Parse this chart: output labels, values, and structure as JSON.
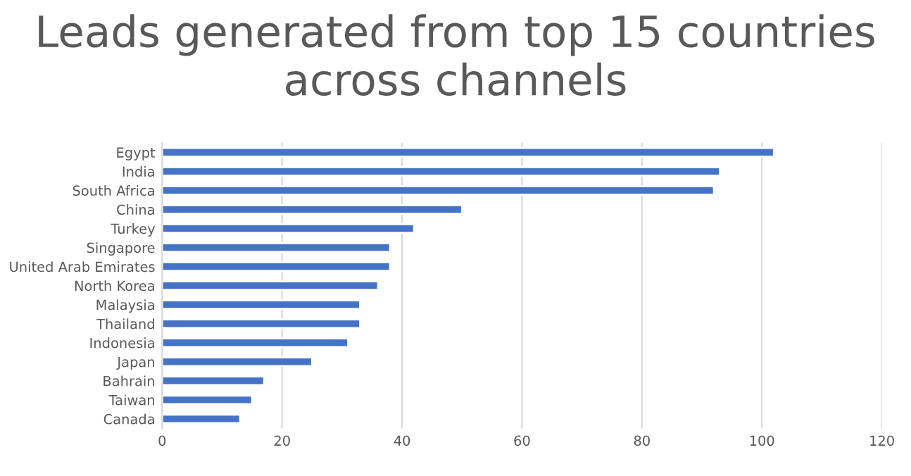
{
  "chart_data": {
    "type": "bar",
    "orientation": "horizontal",
    "title": "Leads generated from top 15 countries across channels",
    "categories": [
      "Egypt",
      "India",
      "South Africa",
      "China",
      "Turkey",
      "Singapore",
      "United Arab Emirates",
      "North Korea",
      "Malaysia",
      "Thailand",
      "Indonesia",
      "Japan",
      "Bahrain",
      "Taiwan",
      "Canada"
    ],
    "values": [
      102,
      93,
      92,
      50,
      42,
      38,
      38,
      36,
      33,
      33,
      31,
      25,
      17,
      15,
      13
    ],
    "color": "#4472c4",
    "xlim": [
      0,
      120
    ],
    "xticks": [
      0,
      20,
      40,
      60,
      80,
      100,
      120
    ],
    "grid": "x",
    "legend": false
  }
}
